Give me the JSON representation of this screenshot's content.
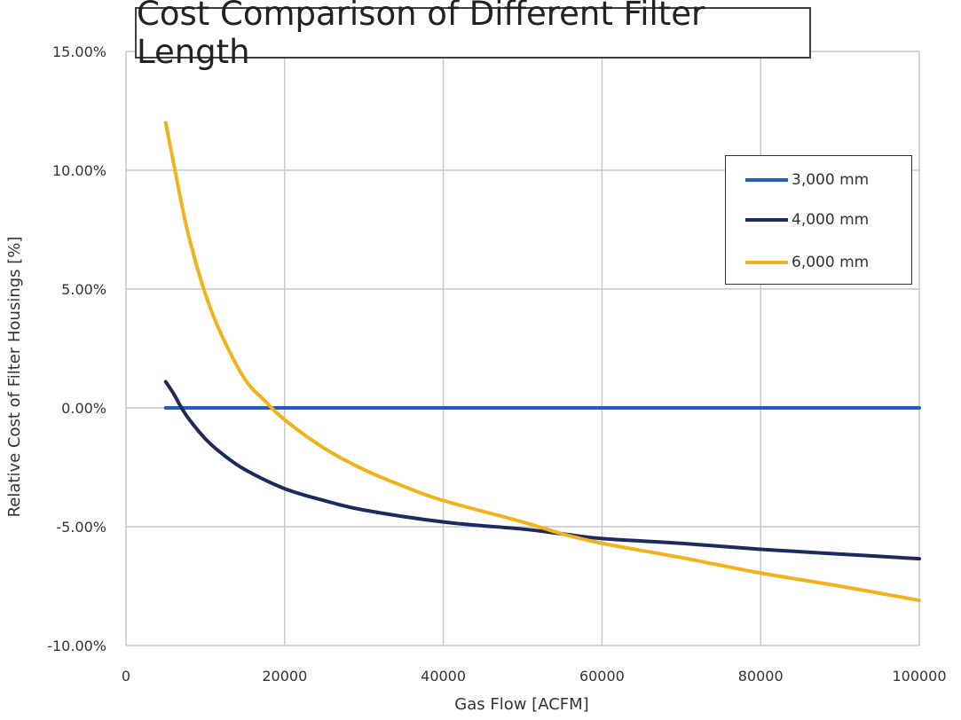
{
  "chart_data": {
    "type": "line",
    "title": "Cost Comparison of Different Filter Length",
    "xlabel": "Gas Flow  [ACFM]",
    "ylabel": "Relative Cost of Filter Housings  [%]",
    "xlim": [
      0,
      100000
    ],
    "ylim": [
      -10,
      15
    ],
    "x_ticks": [
      0,
      20000,
      40000,
      60000,
      80000,
      100000
    ],
    "x_tick_labels": [
      "0",
      "20000",
      "40000",
      "60000",
      "80000",
      "100000"
    ],
    "y_ticks": [
      15,
      10,
      5,
      0,
      -5,
      -10
    ],
    "y_tick_labels": [
      "15.00%",
      "10.00%",
      "5.00%",
      "0.00%",
      "-5.00%",
      "-10.00%"
    ],
    "grid": true,
    "legend_position": "top-right",
    "series": [
      {
        "name": "3,000 mm",
        "color": "#1f5fbf",
        "x": [
          5000,
          100000
        ],
        "y": [
          0,
          0
        ]
      },
      {
        "name": "4,000 mm",
        "color": "#1c2a5e",
        "x": [
          5000,
          6000,
          7000,
          8000,
          10000,
          12000,
          15000,
          20000,
          25000,
          30000,
          40000,
          50000,
          55000,
          60000,
          70000,
          80000,
          90000,
          100000
        ],
        "y": [
          1.1,
          0.6,
          0.0,
          -0.5,
          -1.3,
          -1.9,
          -2.6,
          -3.4,
          -3.9,
          -4.3,
          -4.8,
          -5.1,
          -5.3,
          -5.5,
          -5.7,
          -5.95,
          -6.15,
          -6.35
        ]
      },
      {
        "name": "6,000 mm",
        "color": "#f2b21b",
        "x": [
          5000,
          6000,
          7000,
          8000,
          10000,
          12000,
          15000,
          17500,
          20000,
          25000,
          30000,
          35000,
          40000,
          50000,
          55000,
          60000,
          70000,
          80000,
          90000,
          100000
        ],
        "y": [
          12.0,
          10.3,
          8.6,
          7.1,
          4.8,
          3.1,
          1.2,
          0.3,
          -0.5,
          -1.7,
          -2.6,
          -3.3,
          -3.9,
          -4.8,
          -5.3,
          -5.7,
          -6.3,
          -6.95,
          -7.5,
          -8.1
        ]
      }
    ]
  }
}
